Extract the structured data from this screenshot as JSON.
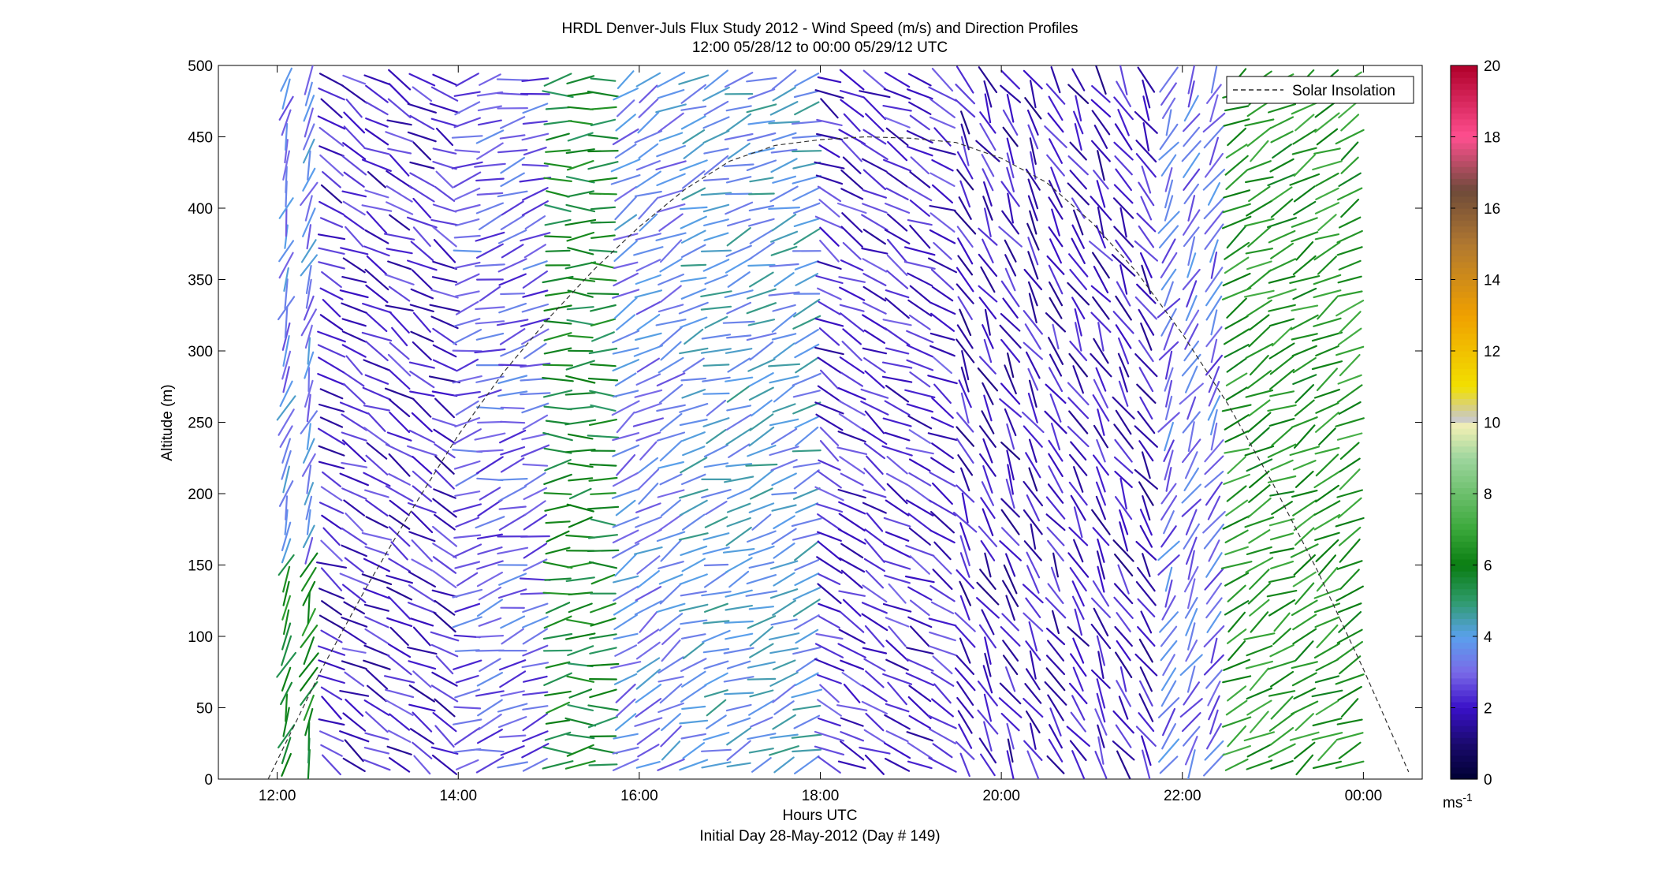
{
  "chart_data": {
    "type": "wind-barb-profile",
    "title": "HRDL Denver-Juls Flux Study 2012 - Wind Speed (m/s) and Direction Profiles",
    "subtitle": "12:00 05/28/12 to 00:00 05/29/12  UTC",
    "xlabel": "Hours UTC",
    "xlabel2": "Initial Day 28-May-2012 (Day # 149)",
    "ylabel": "Altitude (m)",
    "xlim_hours": [
      11.35,
      24.65
    ],
    "ylim": [
      0,
      500
    ],
    "x_ticks": [
      {
        "value": 12,
        "label": "12:00"
      },
      {
        "value": 14,
        "label": "14:00"
      },
      {
        "value": 16,
        "label": "16:00"
      },
      {
        "value": 18,
        "label": "18:00"
      },
      {
        "value": 20,
        "label": "20:00"
      },
      {
        "value": 22,
        "label": "22:00"
      },
      {
        "value": 24,
        "label": "00:00"
      }
    ],
    "y_ticks": [
      0,
      50,
      100,
      150,
      200,
      250,
      300,
      350,
      400,
      450,
      500
    ],
    "legend": {
      "placement": "top-right",
      "entries": [
        {
          "name": "Solar Insolation",
          "style": "dashed"
        }
      ]
    },
    "colorbar": {
      "range": [
        0,
        20
      ],
      "ticks": [
        0,
        2,
        4,
        6,
        8,
        10,
        12,
        14,
        16,
        18,
        20
      ],
      "unit_label": "ms",
      "unit_exponent": "-1",
      "color_stops": [
        {
          "v": 0,
          "c": "#000033"
        },
        {
          "v": 1,
          "c": "#1a0a6e"
        },
        {
          "v": 2,
          "c": "#3a10c8"
        },
        {
          "v": 3,
          "c": "#7a6ae8"
        },
        {
          "v": 4,
          "c": "#5aa0ec"
        },
        {
          "v": 5,
          "c": "#2e9a6a"
        },
        {
          "v": 6,
          "c": "#0a7d12"
        },
        {
          "v": 7,
          "c": "#3aa83a"
        },
        {
          "v": 9,
          "c": "#9ed69e"
        },
        {
          "v": 9.9,
          "c": "#f2efb4"
        },
        {
          "v": 10.1,
          "c": "#c8c8c8"
        },
        {
          "v": 11,
          "c": "#f2e000"
        },
        {
          "v": 13,
          "c": "#f0a000"
        },
        {
          "v": 15,
          "c": "#b07830"
        },
        {
          "v": 16.5,
          "c": "#6e4a3a"
        },
        {
          "v": 18,
          "c": "#ff4f90"
        },
        {
          "v": 20,
          "c": "#b0002a"
        }
      ]
    },
    "solar_insolation_curve": {
      "hours": [
        11.9,
        12.5,
        13.0,
        13.5,
        14.0,
        14.5,
        15.0,
        15.5,
        16.0,
        16.5,
        17.0,
        17.5,
        18.0,
        18.5,
        19.0,
        19.5,
        20.0,
        20.5,
        21.0,
        21.5,
        22.0,
        22.5,
        23.0,
        23.5,
        24.0,
        24.5
      ],
      "altitude_equiv": [
        0,
        78,
        136,
        190,
        241,
        285,
        323,
        357,
        387,
        413,
        433,
        444,
        448,
        450,
        449,
        446,
        435,
        418,
        390,
        355,
        312,
        263,
        207,
        145,
        77,
        5
      ]
    },
    "profiles_time_range": [
      12.1,
      24.0
    ],
    "profile_interval_hours": 0.25,
    "altitude_levels_m": [
      10,
      20,
      30,
      40,
      50,
      60,
      70,
      80,
      90,
      100,
      110,
      120,
      130,
      140,
      150,
      160,
      170,
      180,
      190,
      200,
      210,
      220,
      230,
      240,
      250,
      260,
      270,
      280,
      290,
      300,
      310,
      320,
      330,
      340,
      350,
      360,
      370,
      380,
      390,
      400,
      410,
      420,
      430,
      440,
      450,
      460,
      470,
      480,
      490
    ],
    "wind_regimes": [
      {
        "from_hour": 12.0,
        "to_hour": 12.4,
        "speed_ms": 3.5,
        "direction_deg": 200,
        "speed_low_levels_ms": 6.0
      },
      {
        "from_hour": 12.4,
        "to_hour": 14.0,
        "speed_ms": 2.2,
        "direction_deg": 300
      },
      {
        "from_hour": 14.0,
        "to_hour": 15.0,
        "speed_ms": 3.0,
        "direction_deg": 255
      },
      {
        "from_hour": 15.0,
        "to_hour": 15.8,
        "speed_ms": 5.8,
        "direction_deg": 265
      },
      {
        "from_hour": 15.8,
        "to_hour": 16.6,
        "speed_ms": 3.5,
        "direction_deg": 240
      },
      {
        "from_hour": 16.6,
        "to_hour": 18.0,
        "speed_ms": 4.0,
        "direction_deg": 250
      },
      {
        "from_hour": 18.0,
        "to_hour": 19.5,
        "speed_ms": 2.3,
        "direction_deg": 300
      },
      {
        "from_hour": 19.5,
        "to_hour": 21.8,
        "speed_ms": 2.0,
        "direction_deg": 330
      },
      {
        "from_hour": 21.8,
        "to_hour": 22.5,
        "speed_ms": 3.2,
        "direction_deg": 210
      },
      {
        "from_hour": 22.5,
        "to_hour": 24.0,
        "speed_ms": 6.5,
        "direction_deg": 240
      }
    ]
  }
}
